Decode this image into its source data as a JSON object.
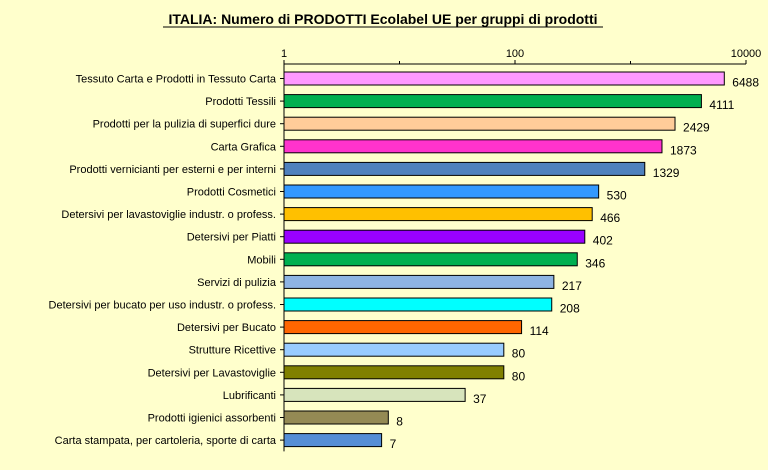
{
  "chart_data": {
    "type": "bar",
    "orientation": "horizontal",
    "title": "ITALIA: Numero di PRODOTTI  Ecolabel UE per gruppi di prodotti",
    "x_scale": "log",
    "xlim": [
      1,
      10000
    ],
    "x_ticks": [
      "1",
      "100",
      "10000"
    ],
    "x_tick_values": [
      1,
      100,
      10000
    ],
    "grid": false,
    "categories": [
      "Tessuto Carta e Prodotti in Tessuto Carta",
      "Prodotti Tessili",
      "Prodotti per la pulizia di superfici dure",
      "Carta Grafica",
      "Prodotti vernicianti per esterni e per interni",
      "Prodotti Cosmetici",
      "Detersivi per lavastoviglie industr. o profess.",
      "Detersivi per Piatti",
      "Mobili",
      "Servizi di pulizia",
      "Detersivi per bucato per uso industr. o profess.",
      "Detersivi per Bucato",
      "Strutture Ricettive",
      "Detersivi per Lavastoviglie",
      "Lubrificanti",
      "Prodotti igienici assorbenti",
      "Carta stampata, per cartoleria, sporte di carta"
    ],
    "values": [
      6488,
      4111,
      2429,
      1873,
      1329,
      530,
      466,
      402,
      346,
      217,
      208,
      114,
      80,
      80,
      37,
      8,
      7
    ],
    "value_labels": [
      "6488",
      "4111",
      "2429",
      "1873",
      "1329",
      "530",
      "466",
      "402",
      "346",
      "217",
      "208",
      "114",
      "80",
      "80",
      "37",
      "8",
      "7"
    ],
    "colors": [
      "#FF99FF",
      "#00B050",
      "#FFCC99",
      "#FF33CC",
      "#4F81BD",
      "#3399FF",
      "#FFC000",
      "#9900FF",
      "#00B050",
      "#8EB4E3",
      "#00FFFF",
      "#FF6600",
      "#99CCFF",
      "#808000",
      "#D7E4BC",
      "#948A54",
      "#558ED5"
    ]
  }
}
